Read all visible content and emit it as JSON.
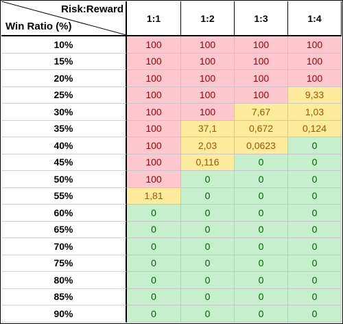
{
  "header": {
    "corner_top": "Risk:Reward",
    "corner_bottom": "Win Ratio (%)",
    "columns": [
      "1:1",
      "1:2",
      "1:3",
      "1:4"
    ]
  },
  "colors": {
    "red_fill": "#ffc7ce",
    "red_text": "#9c0006",
    "yellow_fill": "#ffeb9c",
    "yellow_text": "#9c5700",
    "green_fill": "#c6efce",
    "green_text": "#006100"
  },
  "rows": [
    {
      "label": "10%",
      "cells": [
        {
          "v": "100",
          "c": "red"
        },
        {
          "v": "100",
          "c": "red"
        },
        {
          "v": "100",
          "c": "red"
        },
        {
          "v": "100",
          "c": "red"
        }
      ]
    },
    {
      "label": "15%",
      "cells": [
        {
          "v": "100",
          "c": "red"
        },
        {
          "v": "100",
          "c": "red"
        },
        {
          "v": "100",
          "c": "red"
        },
        {
          "v": "100",
          "c": "red"
        }
      ]
    },
    {
      "label": "20%",
      "cells": [
        {
          "v": "100",
          "c": "red"
        },
        {
          "v": "100",
          "c": "red"
        },
        {
          "v": "100",
          "c": "red"
        },
        {
          "v": "100",
          "c": "red"
        }
      ]
    },
    {
      "label": "25%",
      "cells": [
        {
          "v": "100",
          "c": "red"
        },
        {
          "v": "100",
          "c": "red"
        },
        {
          "v": "100",
          "c": "red"
        },
        {
          "v": "9,33",
          "c": "yellow"
        }
      ]
    },
    {
      "label": "30%",
      "cells": [
        {
          "v": "100",
          "c": "red"
        },
        {
          "v": "100",
          "c": "red"
        },
        {
          "v": "7,67",
          "c": "yellow"
        },
        {
          "v": "1,03",
          "c": "yellow"
        }
      ]
    },
    {
      "label": "35%",
      "cells": [
        {
          "v": "100",
          "c": "red"
        },
        {
          "v": "37,1",
          "c": "yellow"
        },
        {
          "v": "0,672",
          "c": "yellow"
        },
        {
          "v": "0,124",
          "c": "yellow"
        }
      ]
    },
    {
      "label": "40%",
      "cells": [
        {
          "v": "100",
          "c": "red"
        },
        {
          "v": "2,03",
          "c": "yellow"
        },
        {
          "v": "0,0623",
          "c": "yellow"
        },
        {
          "v": "0",
          "c": "green"
        }
      ]
    },
    {
      "label": "45%",
      "cells": [
        {
          "v": "100",
          "c": "red"
        },
        {
          "v": "0,116",
          "c": "yellow"
        },
        {
          "v": "0",
          "c": "green"
        },
        {
          "v": "0",
          "c": "green"
        }
      ]
    },
    {
      "label": "50%",
      "cells": [
        {
          "v": "100",
          "c": "red"
        },
        {
          "v": "0",
          "c": "green"
        },
        {
          "v": "0",
          "c": "green"
        },
        {
          "v": "0",
          "c": "green"
        }
      ]
    },
    {
      "label": "55%",
      "cells": [
        {
          "v": "1,81",
          "c": "yellow"
        },
        {
          "v": "0",
          "c": "green"
        },
        {
          "v": "0",
          "c": "green"
        },
        {
          "v": "0",
          "c": "green"
        }
      ]
    },
    {
      "label": "60%",
      "cells": [
        {
          "v": "0",
          "c": "green"
        },
        {
          "v": "0",
          "c": "green"
        },
        {
          "v": "0",
          "c": "green"
        },
        {
          "v": "0",
          "c": "green"
        }
      ]
    },
    {
      "label": "65%",
      "cells": [
        {
          "v": "0",
          "c": "green"
        },
        {
          "v": "0",
          "c": "green"
        },
        {
          "v": "0",
          "c": "green"
        },
        {
          "v": "0",
          "c": "green"
        }
      ]
    },
    {
      "label": "70%",
      "cells": [
        {
          "v": "0",
          "c": "green"
        },
        {
          "v": "0",
          "c": "green"
        },
        {
          "v": "0",
          "c": "green"
        },
        {
          "v": "0",
          "c": "green"
        }
      ]
    },
    {
      "label": "75%",
      "cells": [
        {
          "v": "0",
          "c": "green"
        },
        {
          "v": "0",
          "c": "green"
        },
        {
          "v": "0",
          "c": "green"
        },
        {
          "v": "0",
          "c": "green"
        }
      ]
    },
    {
      "label": "80%",
      "cells": [
        {
          "v": "0",
          "c": "green"
        },
        {
          "v": "0",
          "c": "green"
        },
        {
          "v": "0",
          "c": "green"
        },
        {
          "v": "0",
          "c": "green"
        }
      ]
    },
    {
      "label": "85%",
      "cells": [
        {
          "v": "0",
          "c": "green"
        },
        {
          "v": "0",
          "c": "green"
        },
        {
          "v": "0",
          "c": "green"
        },
        {
          "v": "0",
          "c": "green"
        }
      ]
    },
    {
      "label": "90%",
      "cells": [
        {
          "v": "0",
          "c": "green"
        },
        {
          "v": "0",
          "c": "green"
        },
        {
          "v": "0",
          "c": "green"
        },
        {
          "v": "0",
          "c": "green"
        }
      ]
    }
  ]
}
